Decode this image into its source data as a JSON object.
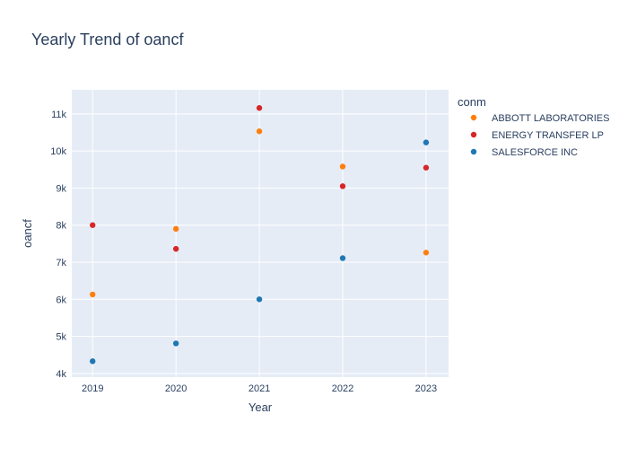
{
  "chart_data": {
    "type": "scatter",
    "title": "Yearly Trend of oancf",
    "xlabel": "Year",
    "ylabel": "oancf",
    "x": [
      2019,
      2020,
      2021,
      2022,
      2023
    ],
    "x_tick_labels": [
      "2019",
      "2020",
      "2021",
      "2022",
      "2023"
    ],
    "xlim": [
      2018.75,
      2023.27
    ],
    "ylim": [
      3900,
      11650
    ],
    "y_ticks": [
      4000,
      5000,
      6000,
      7000,
      8000,
      9000,
      10000,
      11000
    ],
    "y_tick_labels": [
      "4k",
      "5k",
      "6k",
      "7k",
      "8k",
      "9k",
      "10k",
      "11k"
    ],
    "grid": true,
    "legend_title": "conm",
    "legend_position": "top-right",
    "plot_background": "#E5ECF6",
    "series": [
      {
        "name": "ABBOTT LABORATORIES",
        "color": "#FF7F0E",
        "values": [
          6130,
          7900,
          10530,
          9580,
          7260
        ]
      },
      {
        "name": "ENERGY TRANSFER LP",
        "color": "#D62728",
        "values": [
          8000,
          7360,
          11160,
          9050,
          9550
        ]
      },
      {
        "name": "SALESFORCE INC",
        "color": "#1F77B4",
        "values": [
          4330,
          4810,
          6000,
          7110,
          10230
        ]
      }
    ]
  }
}
